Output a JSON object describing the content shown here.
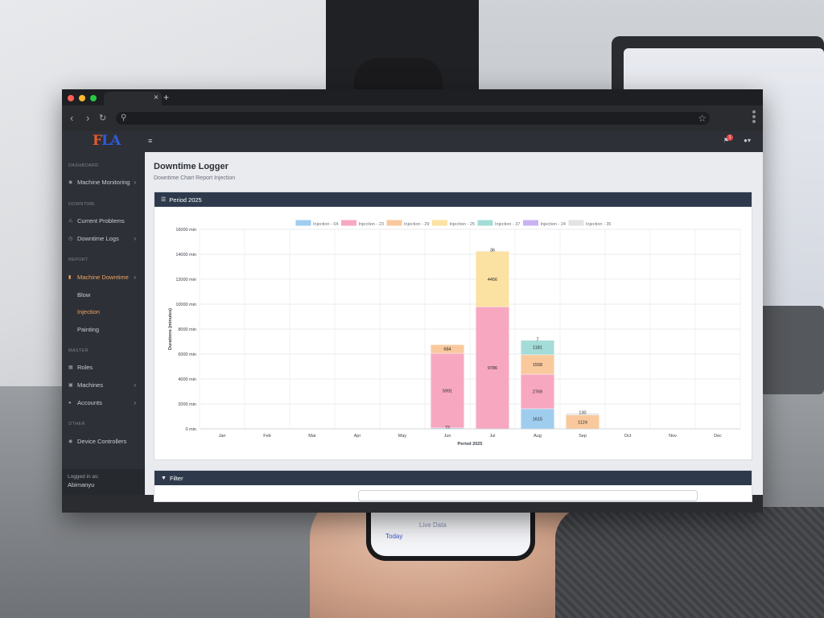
{
  "phone": {
    "tab_today": "Today",
    "tab_live": "Live Data"
  },
  "browser": {
    "tab_close": "×",
    "new_tab": "+"
  },
  "sidebar": {
    "logo": "FLA",
    "sections": [
      {
        "title": "DASHBOARD"
      },
      {
        "title": "DOWNTIME"
      },
      {
        "title": "REPORT"
      },
      {
        "title": "MASTER"
      },
      {
        "title": "OTHER"
      }
    ],
    "items": {
      "machine_monitoring": "Machine Monitoring",
      "current_problems": "Current Problems",
      "downtime_logs": "Downtime Logs",
      "machine_downtime": "Machine Downtime",
      "blow": "Blow",
      "injection": "Injection",
      "painting": "Painting",
      "roles": "Roles",
      "machines": "Machines",
      "accounts": "Accounts",
      "device_controllers": "Device Controllers"
    },
    "logged_label": "Logged in as:",
    "logged_user": "Abimanyu"
  },
  "topbar": {
    "badge": "1"
  },
  "page": {
    "title": "Downtime Logger",
    "subtitle": "Downtime Chart Report Injection"
  },
  "card": {
    "title": "Period 2025"
  },
  "filter": {
    "title": "Filter"
  },
  "colors": {
    "sidebar_bg": "#2d3036",
    "accent": "#f0a45e",
    "card_header": "#2e3a4c"
  },
  "chart_data": {
    "type": "bar",
    "stacked": true,
    "categories": [
      "Jan",
      "Feb",
      "Mar",
      "Apr",
      "May",
      "Jun",
      "Jul",
      "Aug",
      "Sep",
      "Oct",
      "Nov",
      "Dec"
    ],
    "xlabel": "Period 2025",
    "ylabel": "Durations (minutes)",
    "ylim": [
      0,
      16000
    ],
    "yticks": [
      0,
      2000,
      4000,
      6000,
      8000,
      10000,
      12000,
      14000,
      16000
    ],
    "ytick_labels": [
      "0 min",
      "2000 min",
      "4000 min",
      "6000 min",
      "8000 min",
      "10000 min",
      "12000 min",
      "14000 min",
      "16000 min"
    ],
    "legend_position": "top",
    "grid": true,
    "series": [
      {
        "name": "Injection - 04",
        "color": "#9fcdee",
        "values": [
          0,
          0,
          0,
          0,
          0,
          72,
          0,
          1615,
          0,
          0,
          0,
          0
        ]
      },
      {
        "name": "Injection - 23",
        "color": "#f7a8c0",
        "values": [
          0,
          0,
          0,
          0,
          0,
          5991,
          9786,
          2769,
          0,
          0,
          0,
          0
        ]
      },
      {
        "name": "Injection - 29",
        "color": "#f9c99d",
        "values": [
          0,
          0,
          0,
          0,
          0,
          684,
          0,
          1558,
          1124,
          0,
          0,
          0
        ]
      },
      {
        "name": "Injection - 25",
        "color": "#fbe2a2",
        "values": [
          0,
          0,
          0,
          0,
          0,
          0,
          4456,
          0,
          0,
          0,
          0,
          0
        ]
      },
      {
        "name": "Injection - 37",
        "color": "#a4dcd7",
        "values": [
          0,
          0,
          0,
          0,
          0,
          0,
          0,
          1181,
          0,
          0,
          0,
          0
        ]
      },
      {
        "name": "Injection - 24",
        "color": "#c9b3f2",
        "values": [
          0,
          0,
          0,
          0,
          0,
          0,
          36,
          0,
          0,
          0,
          0,
          0
        ]
      },
      {
        "name": "Injection - 35",
        "color": "#e2e3e5",
        "values": [
          0,
          0,
          0,
          0,
          0,
          0,
          0,
          7,
          130,
          0,
          0,
          0
        ]
      }
    ],
    "segment_labels": [
      {
        "cat": "Jun",
        "series": "Injection - 04",
        "text": "72"
      },
      {
        "cat": "Jun",
        "series": "Injection - 23",
        "text": "5991"
      },
      {
        "cat": "Jun",
        "series": "Injection - 29",
        "text": "684"
      },
      {
        "cat": "Jul",
        "series": "Injection - 24",
        "text": "36"
      },
      {
        "cat": "Jul",
        "series": "Injection - 23",
        "text": "9786"
      },
      {
        "cat": "Jul",
        "series": "Injection - 25",
        "text": "4456"
      },
      {
        "cat": "Aug",
        "series": "Injection - 04",
        "text": "1615"
      },
      {
        "cat": "Aug",
        "series": "Injection - 23",
        "text": "2769"
      },
      {
        "cat": "Aug",
        "series": "Injection - 29",
        "text": "1558"
      },
      {
        "cat": "Aug",
        "series": "Injection - 37",
        "text": "1181"
      },
      {
        "cat": "Aug",
        "series": "Injection - 35",
        "text": "7"
      },
      {
        "cat": "Sep",
        "series": "Injection - 29",
        "text": "1124"
      },
      {
        "cat": "Sep",
        "series": "Injection - 35",
        "text": "130"
      }
    ]
  }
}
